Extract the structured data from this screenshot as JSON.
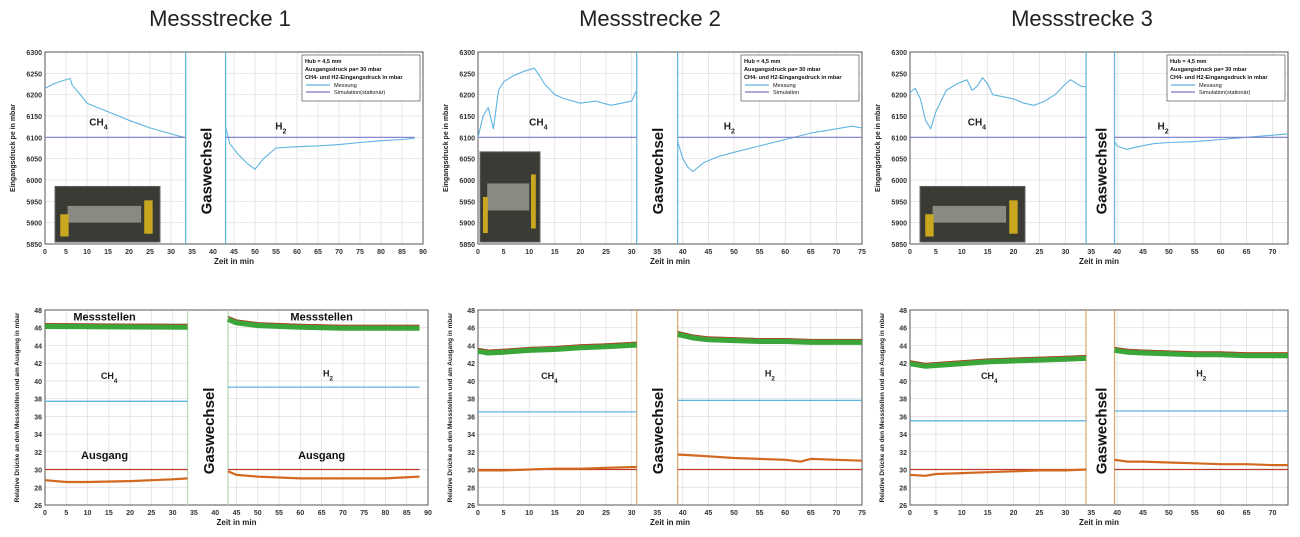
{
  "columns": [
    {
      "title": "Messstrecke 1"
    },
    {
      "title": "Messstrecke 2"
    },
    {
      "title": "Messstrecke 3"
    }
  ],
  "colors": {
    "messung": "#5fb4e0",
    "simulation": "#7b7bc8",
    "outlet": "#d2691e",
    "outlet_sim": "#c0392b",
    "green": "#3aa63a",
    "green_dark": "#2e7d32",
    "blue_sim": "#5fb4e0"
  },
  "chart_data": [
    {
      "type": "line",
      "id": "top1",
      "xlabel": "Zeit in min",
      "ylabel": "Eingangsdruck pe in mbar",
      "xlim": [
        0,
        90
      ],
      "ylim": [
        5850,
        6300
      ],
      "xticks": [
        0,
        5,
        10,
        15,
        20,
        25,
        30,
        35,
        40,
        45,
        50,
        55,
        60,
        65,
        70,
        75,
        80,
        85,
        90
      ],
      "yticks": [
        5850,
        5900,
        5950,
        6000,
        6050,
        6100,
        6150,
        6200,
        6250,
        6300
      ],
      "legend": {
        "lines": [
          "Hub = 4,5 mm",
          "Ausgangsdruck pa= 30 mbar",
          "CH4- und H2-Eingangsdruck in mbar"
        ],
        "items": [
          "Messung",
          "Simulation(stationär)"
        ]
      },
      "gap_label": "Gaswechsel",
      "gas_labels": [
        "CH4",
        "H2"
      ],
      "gap": [
        33.5,
        43
      ],
      "series": [
        {
          "name": "Messung",
          "x": [
            0,
            2,
            4,
            6,
            6.5,
            8,
            10,
            15,
            20,
            25,
            30,
            33
          ],
          "y": [
            6215,
            6225,
            6232,
            6238,
            6222,
            6205,
            6180,
            6160,
            6140,
            6122,
            6108,
            6100
          ]
        },
        {
          "name": "Messung",
          "x": [
            43,
            44,
            46,
            48,
            50,
            52,
            55,
            60,
            65,
            70,
            75,
            80,
            85,
            88
          ],
          "y": [
            6125,
            6085,
            6060,
            6040,
            6025,
            6050,
            6075,
            6078,
            6080,
            6083,
            6088,
            6092,
            6095,
            6098
          ]
        },
        {
          "name": "Simulation(stationär)",
          "x": [
            0,
            33.5
          ],
          "y": [
            6100,
            6100
          ]
        },
        {
          "name": "Simulation(stationär)",
          "x": [
            43,
            88
          ],
          "y": [
            6100,
            6100
          ]
        }
      ]
    },
    {
      "type": "line",
      "id": "top2",
      "xlabel": "Zeit in min",
      "ylabel": "Eingangsdruck pe in mbar",
      "xlim": [
        0,
        75
      ],
      "ylim": [
        5850,
        6300
      ],
      "xticks": [
        0,
        5,
        10,
        15,
        20,
        25,
        30,
        35,
        40,
        45,
        50,
        55,
        60,
        65,
        70,
        75
      ],
      "yticks": [
        5850,
        5900,
        5950,
        6000,
        6050,
        6100,
        6150,
        6200,
        6250,
        6300
      ],
      "legend": {
        "lines": [
          "Hub = 4,5 mm",
          "Ausgangsdruck pa= 30 mbar",
          "CH4- und H2-Eingangsdruck in mbar"
        ],
        "items": [
          "Messung",
          "Simulation"
        ]
      },
      "gap_label": "Gaswechsel",
      "gas_labels": [
        "CH4",
        "H2"
      ],
      "gap": [
        31,
        39
      ],
      "series": [
        {
          "name": "Messung",
          "x": [
            0,
            1,
            2,
            3,
            4,
            5,
            7,
            9,
            11,
            12,
            13,
            15,
            17,
            20,
            23,
            26,
            28,
            30,
            31
          ],
          "y": [
            6100,
            6150,
            6170,
            6120,
            6210,
            6230,
            6245,
            6255,
            6262,
            6245,
            6225,
            6200,
            6190,
            6180,
            6185,
            6175,
            6180,
            6185,
            6210
          ]
        },
        {
          "name": "Messung",
          "x": [
            39,
            40,
            41,
            42,
            44,
            47,
            50,
            55,
            60,
            65,
            70,
            73,
            75
          ],
          "y": [
            6090,
            6050,
            6030,
            6020,
            6040,
            6055,
            6065,
            6080,
            6095,
            6110,
            6120,
            6126,
            6122
          ]
        },
        {
          "name": "Simulation",
          "x": [
            0,
            31
          ],
          "y": [
            6100,
            6100
          ]
        },
        {
          "name": "Simulation",
          "x": [
            39,
            75
          ],
          "y": [
            6100,
            6100
          ]
        }
      ]
    },
    {
      "type": "line",
      "id": "top3",
      "xlabel": "Zeit in min",
      "ylabel": "Eingangsdruck pe in mbar",
      "xlim": [
        0,
        73
      ],
      "ylim": [
        5850,
        6300
      ],
      "xticks": [
        0,
        5,
        10,
        15,
        20,
        25,
        30,
        35,
        40,
        45,
        50,
        55,
        60,
        65,
        70
      ],
      "yticks": [
        5850,
        5900,
        5950,
        6000,
        6050,
        6100,
        6150,
        6200,
        6250,
        6300
      ],
      "legend": {
        "lines": [
          "Hub = 4,5 mm",
          "Ausgangsdruck pa= 30 mbar",
          "CH4- und H2-Eingangsdruck in mbar"
        ],
        "items": [
          "Messung",
          "Simulation(stationär)"
        ]
      },
      "gap_label": "Gaswechsel",
      "gas_labels": [
        "CH4",
        "H2"
      ],
      "gap": [
        34,
        39.5
      ],
      "series": [
        {
          "name": "Messung",
          "x": [
            0,
            1,
            2,
            3,
            4,
            5,
            7,
            9,
            11,
            12,
            13,
            14,
            15,
            16,
            18,
            20,
            22,
            24,
            26,
            28,
            30,
            31,
            33,
            34
          ],
          "y": [
            6205,
            6215,
            6190,
            6140,
            6120,
            6160,
            6210,
            6225,
            6235,
            6210,
            6220,
            6240,
            6225,
            6200,
            6195,
            6190,
            6180,
            6175,
            6185,
            6200,
            6225,
            6235,
            6220,
            6218
          ]
        },
        {
          "name": "Messung",
          "x": [
            39.5,
            40,
            41,
            42,
            44,
            47,
            50,
            55,
            60,
            65,
            70,
            73
          ],
          "y": [
            6090,
            6080,
            6075,
            6072,
            6078,
            6085,
            6088,
            6090,
            6095,
            6100,
            6105,
            6108
          ]
        },
        {
          "name": "Simulation(stationär)",
          "x": [
            0,
            34
          ],
          "y": [
            6100,
            6100
          ]
        },
        {
          "name": "Simulation(stationär)",
          "x": [
            39.5,
            73
          ],
          "y": [
            6100,
            6100
          ]
        }
      ]
    },
    {
      "type": "line",
      "id": "bot1",
      "xlabel": "Zeit in min",
      "ylabel": "Relative Drücke an den Messstellen und am Ausgang in mbar",
      "xlim": [
        0,
        90
      ],
      "ylim": [
        26,
        48
      ],
      "xticks": [
        0,
        5,
        10,
        15,
        20,
        25,
        30,
        35,
        40,
        45,
        50,
        55,
        60,
        65,
        70,
        75,
        80,
        85,
        90
      ],
      "yticks": [
        26,
        28,
        30,
        32,
        34,
        36,
        38,
        40,
        42,
        44,
        46,
        48
      ],
      "gap_label": "Gaswechsel",
      "labels": {
        "messstellen": "Messstellen",
        "ausgang": "Ausgang",
        "ch4": "CH4",
        "h2": "H2"
      },
      "gap": [
        33.5,
        43
      ],
      "series": [
        {
          "name": "green-band",
          "x": [
            0,
            33.5
          ],
          "y": [
            46.2,
            46.1
          ]
        },
        {
          "name": "green-band",
          "x": [
            43,
            45,
            50,
            60,
            70,
            80,
            88
          ],
          "y": [
            47.0,
            46.6,
            46.3,
            46.1,
            46.0,
            46.0,
            46.0
          ]
        },
        {
          "name": "blue-sim",
          "x": [
            0,
            33.5
          ],
          "y": [
            37.7,
            37.7
          ]
        },
        {
          "name": "blue-sim",
          "x": [
            43,
            88
          ],
          "y": [
            39.3,
            39.3
          ]
        },
        {
          "name": "outlet-sim",
          "x": [
            0,
            33.5
          ],
          "y": [
            30,
            30
          ]
        },
        {
          "name": "outlet-sim",
          "x": [
            43,
            88
          ],
          "y": [
            30,
            30
          ]
        },
        {
          "name": "outlet",
          "x": [
            0,
            5,
            10,
            20,
            30,
            33.5
          ],
          "y": [
            28.8,
            28.6,
            28.6,
            28.7,
            28.9,
            29.0
          ]
        },
        {
          "name": "outlet",
          "x": [
            43,
            45,
            50,
            60,
            70,
            80,
            88
          ],
          "y": [
            29.8,
            29.4,
            29.2,
            29.0,
            29.0,
            29.0,
            29.2
          ]
        }
      ]
    },
    {
      "type": "line",
      "id": "bot2",
      "xlabel": "Zeit in min",
      "ylabel": "Relative Drücke an den Messstellen und am Ausgang in mbar",
      "xlim": [
        0,
        75
      ],
      "ylim": [
        26,
        48
      ],
      "xticks": [
        0,
        5,
        10,
        15,
        20,
        25,
        30,
        35,
        40,
        45,
        50,
        55,
        60,
        65,
        70,
        75
      ],
      "yticks": [
        26,
        28,
        30,
        32,
        34,
        36,
        38,
        40,
        42,
        44,
        46,
        48
      ],
      "gap_label": "Gaswechsel",
      "labels": {
        "ch4": "CH4",
        "h2": "H2"
      },
      "gap": [
        31,
        39
      ],
      "series": [
        {
          "name": "green-band",
          "x": [
            0,
            2,
            5,
            10,
            15,
            20,
            25,
            31
          ],
          "y": [
            43.4,
            43.2,
            43.3,
            43.5,
            43.6,
            43.8,
            43.9,
            44.1
          ]
        },
        {
          "name": "green-band",
          "x": [
            39,
            42,
            45,
            50,
            55,
            60,
            65,
            70,
            75
          ],
          "y": [
            45.3,
            44.9,
            44.7,
            44.6,
            44.5,
            44.5,
            44.4,
            44.4,
            44.4
          ]
        },
        {
          "name": "blue-sim",
          "x": [
            0,
            31
          ],
          "y": [
            36.5,
            36.5
          ]
        },
        {
          "name": "blue-sim",
          "x": [
            39,
            75
          ],
          "y": [
            37.8,
            37.8
          ]
        },
        {
          "name": "outlet-sim",
          "x": [
            0,
            31
          ],
          "y": [
            30,
            30
          ]
        },
        {
          "name": "outlet-sim",
          "x": [
            39,
            75
          ],
          "y": [
            30,
            30
          ]
        },
        {
          "name": "outlet",
          "x": [
            0,
            5,
            10,
            15,
            20,
            25,
            31
          ],
          "y": [
            29.9,
            29.9,
            30.0,
            30.1,
            30.1,
            30.2,
            30.3
          ]
        },
        {
          "name": "outlet",
          "x": [
            39,
            42,
            45,
            50,
            55,
            60,
            63,
            65,
            70,
            75
          ],
          "y": [
            31.7,
            31.6,
            31.5,
            31.3,
            31.2,
            31.1,
            30.9,
            31.2,
            31.1,
            31.0
          ]
        }
      ]
    },
    {
      "type": "line",
      "id": "bot3",
      "xlabel": "Zeit in min",
      "ylabel": "Relative Drücke an den Messstellen und am Ausgang in mbar",
      "xlim": [
        0,
        73
      ],
      "ylim": [
        26,
        48
      ],
      "xticks": [
        0,
        5,
        10,
        15,
        20,
        25,
        30,
        35,
        40,
        45,
        50,
        55,
        60,
        65,
        70
      ],
      "yticks": [
        26,
        28,
        30,
        32,
        34,
        36,
        38,
        40,
        42,
        44,
        46,
        48
      ],
      "gap_label": "Gaswechsel",
      "labels": {
        "ch4": "CH4",
        "h2": "H2"
      },
      "gap": [
        34,
        39.5
      ],
      "series": [
        {
          "name": "green-band",
          "x": [
            0,
            3,
            5,
            10,
            15,
            20,
            25,
            30,
            34
          ],
          "y": [
            42.0,
            41.7,
            41.8,
            42.0,
            42.2,
            42.3,
            42.4,
            42.5,
            42.6
          ]
        },
        {
          "name": "green-band",
          "x": [
            39.5,
            42,
            45,
            50,
            55,
            60,
            65,
            70,
            73
          ],
          "y": [
            43.5,
            43.3,
            43.2,
            43.1,
            43.0,
            43.0,
            42.9,
            42.9,
            42.9
          ]
        },
        {
          "name": "blue-sim",
          "x": [
            0,
            34
          ],
          "y": [
            35.5,
            35.5
          ]
        },
        {
          "name": "blue-sim",
          "x": [
            39.5,
            73
          ],
          "y": [
            36.6,
            36.6
          ]
        },
        {
          "name": "outlet-sim",
          "x": [
            0,
            34
          ],
          "y": [
            30,
            30
          ]
        },
        {
          "name": "outlet-sim",
          "x": [
            39.5,
            73
          ],
          "y": [
            30,
            30
          ]
        },
        {
          "name": "outlet",
          "x": [
            0,
            3,
            5,
            10,
            15,
            20,
            25,
            30,
            34
          ],
          "y": [
            29.4,
            29.3,
            29.5,
            29.6,
            29.7,
            29.8,
            29.9,
            29.9,
            30.0
          ]
        },
        {
          "name": "outlet",
          "x": [
            39.5,
            42,
            45,
            50,
            55,
            60,
            65,
            70,
            73
          ],
          "y": [
            31.1,
            30.9,
            30.9,
            30.8,
            30.7,
            30.6,
            30.6,
            30.5,
            30.5
          ]
        }
      ]
    }
  ]
}
